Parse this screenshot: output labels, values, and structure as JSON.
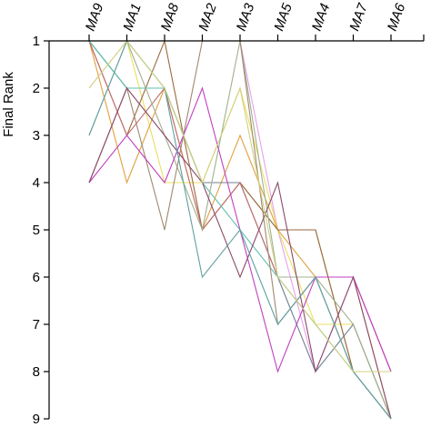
{
  "chart_data": {
    "type": "line",
    "ylabel": "Final Rank",
    "xlabel": "",
    "categories": [
      "MA9",
      "MA1",
      "MA8",
      "MA2",
      "MA3",
      "MA5",
      "MA4",
      "MA7",
      "MA6"
    ],
    "yticks": [
      1,
      2,
      3,
      4,
      5,
      6,
      7,
      8,
      9
    ],
    "ylim": [
      1,
      9
    ],
    "y_inverted": true,
    "grid": false,
    "series": [
      {
        "color": "#e8a0e8",
        "values": [
          1,
          1,
          1,
          1,
          1,
          5,
          8,
          6,
          8
        ]
      },
      {
        "color": "#b5b560",
        "values": [
          1,
          2,
          2,
          4,
          4,
          5,
          5,
          8,
          8
        ]
      },
      {
        "color": "#e8e060",
        "values": [
          1,
          1,
          4,
          4,
          2,
          5,
          7,
          7,
          9
        ]
      },
      {
        "color": "#e0a040",
        "values": [
          1,
          4,
          2,
          5,
          3,
          5,
          6,
          6,
          9
        ]
      },
      {
        "color": "#9a6a40",
        "values": [
          1,
          3,
          1,
          5,
          4,
          5,
          5,
          8,
          8
        ]
      },
      {
        "color": "#708090",
        "values": [
          1,
          2,
          2,
          4,
          4,
          6,
          8,
          7,
          9
        ]
      },
      {
        "color": "#c07070",
        "values": [
          1,
          3,
          2,
          5,
          4,
          6,
          6,
          6,
          8
        ]
      },
      {
        "color": "#60c0b0",
        "values": [
          1,
          2,
          2,
          4,
          5,
          6,
          7,
          8,
          9
        ]
      },
      {
        "color": "#a0b090",
        "values": [
          3,
          1,
          3,
          5,
          1,
          6,
          6,
          7,
          9
        ]
      },
      {
        "color": "#a08870",
        "values": [
          4,
          2,
          5,
          1,
          1,
          7,
          6,
          8,
          9
        ]
      },
      {
        "color": "#c040c0",
        "values": [
          4,
          3,
          4,
          2,
          5,
          8,
          6,
          6,
          8
        ]
      },
      {
        "color": "#8a4a6a",
        "values": [
          4,
          2,
          3,
          4,
          6,
          4,
          8,
          6,
          9
        ]
      },
      {
        "color": "#60a0a0",
        "values": [
          3,
          1,
          2,
          6,
          5,
          7,
          6,
          8,
          9
        ]
      },
      {
        "color": "#d0d080",
        "values": [
          2,
          1,
          2,
          4,
          2,
          6,
          7,
          8,
          8
        ]
      }
    ]
  }
}
